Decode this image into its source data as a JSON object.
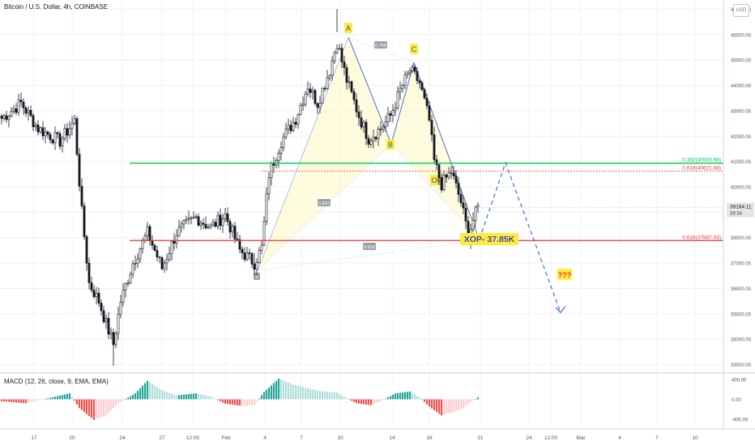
{
  "header": {
    "title": "Bitcoin / U.S. Dollar, 4h, COINBASE"
  },
  "currency": "USD",
  "price_axis": {
    "ticks": [
      {
        "v": 47000,
        "label": "47000.00"
      },
      {
        "v": 46000,
        "label": "46000.00"
      },
      {
        "v": 45000,
        "label": "45000.00"
      },
      {
        "v": 44000,
        "label": "44000.00"
      },
      {
        "v": 43000,
        "label": "43000.00"
      },
      {
        "v": 42000,
        "label": "42000.00"
      },
      {
        "v": 41000,
        "label": "41000.00"
      },
      {
        "v": 40000,
        "label": "40000.00"
      },
      {
        "v": 39000,
        "label": "39000.00"
      },
      {
        "v": 38000,
        "label": "38000.00"
      },
      {
        "v": 37000,
        "label": "37000.00"
      },
      {
        "v": 36000,
        "label": "36000.00"
      },
      {
        "v": 35000,
        "label": "35000.00"
      },
      {
        "v": 34000,
        "label": "34000.00"
      },
      {
        "v": 33000,
        "label": "33000.00"
      }
    ],
    "current_price": {
      "value": 39184.11,
      "label": "39184.11",
      "countdown": "39:34"
    }
  },
  "time_axis": [
    "17",
    "20",
    "24",
    "27",
    "12:00",
    "Feb",
    "4",
    "7",
    "10",
    "14",
    "16",
    "21",
    "24",
    "12:00",
    "Mar",
    "4",
    "7",
    "10"
  ],
  "macd": {
    "label": "MACD (12, 26, close, 9, EMA, EMA)",
    "ticks": [
      {
        "v": 400,
        "label": "400.00"
      },
      {
        "v": 0,
        "label": "0.00"
      },
      {
        "v": -400,
        "label": "-400.00"
      }
    ],
    "colors": {
      "pos_strong": "#26a69a",
      "pos_weak": "#b2dfdb",
      "neg_strong": "#ef5350",
      "neg_weak": "#ffcdd2"
    }
  },
  "chart_data": [
    {
      "type": "candlestick",
      "title": "Bitcoin / U.S. Dollar, 4h, COINBASE",
      "ylim": [
        32700,
        47300
      ],
      "anchors": [
        {
          "t": 0,
          "p": 42700
        },
        {
          "t": 8,
          "p": 43300
        },
        {
          "t": 15,
          "p": 42300
        },
        {
          "t": 24,
          "p": 41800
        },
        {
          "t": 30,
          "p": 42600
        },
        {
          "t": 33,
          "p": 39000
        },
        {
          "t": 36,
          "p": 36200
        },
        {
          "t": 40,
          "p": 35500
        },
        {
          "t": 43,
          "p": 34600
        },
        {
          "t": 46,
          "p": 33800
        },
        {
          "t": 49,
          "p": 35500
        },
        {
          "t": 54,
          "p": 37000
        },
        {
          "t": 60,
          "p": 38200
        },
        {
          "t": 66,
          "p": 36800
        },
        {
          "t": 72,
          "p": 38200
        },
        {
          "t": 80,
          "p": 38800
        },
        {
          "t": 86,
          "p": 38400
        },
        {
          "t": 92,
          "p": 38900
        },
        {
          "t": 98,
          "p": 37500
        },
        {
          "t": 104,
          "p": 37000
        },
        {
          "t": 107,
          "p": 37600
        },
        {
          "t": 110,
          "p": 40500
        },
        {
          "t": 115,
          "p": 41800
        },
        {
          "t": 121,
          "p": 42700
        },
        {
          "t": 126,
          "p": 44000
        },
        {
          "t": 130,
          "p": 43300
        },
        {
          "t": 135,
          "p": 44600
        },
        {
          "t": 138,
          "p": 45700
        },
        {
          "t": 142,
          "p": 44200
        },
        {
          "t": 147,
          "p": 42800
        },
        {
          "t": 151,
          "p": 41900
        },
        {
          "t": 156,
          "p": 42300
        },
        {
          "t": 160,
          "p": 42800
        },
        {
          "t": 164,
          "p": 43800
        },
        {
          "t": 168,
          "p": 44600
        },
        {
          "t": 172,
          "p": 44100
        },
        {
          "t": 176,
          "p": 42600
        },
        {
          "t": 178,
          "p": 41000
        },
        {
          "t": 181,
          "p": 40100
        },
        {
          "t": 185,
          "p": 40600
        },
        {
          "t": 189,
          "p": 39400
        },
        {
          "t": 192,
          "p": 38100
        },
        {
          "t": 194,
          "p": 38700
        },
        {
          "t": 196,
          "p": 39200
        }
      ]
    },
    {
      "type": "annotations",
      "harmonic_points": [
        {
          "label": "A",
          "p": 45900
        },
        {
          "label": "B",
          "p": 41700
        },
        {
          "label": "C",
          "p": 44900
        },
        {
          "label": "OP",
          "p": 40200
        }
      ],
      "ratio_labels": [
        "0.749",
        "0.843",
        "0.816"
      ],
      "x_point_label": "X",
      "levels": [
        {
          "label": "0.382(40933.98)",
          "value": 40933.98,
          "color": "#00c853",
          "style": "solid"
        },
        {
          "label": "0.618(40621.88)",
          "value": 40621.88,
          "color": "#e53935",
          "style": "dotted"
        },
        {
          "label": "0.618(37887.93)",
          "value": 37887.93,
          "color": "#e53935",
          "style": "solid"
        }
      ],
      "callouts": [
        "XOP- 37.85K",
        "???"
      ]
    }
  ]
}
